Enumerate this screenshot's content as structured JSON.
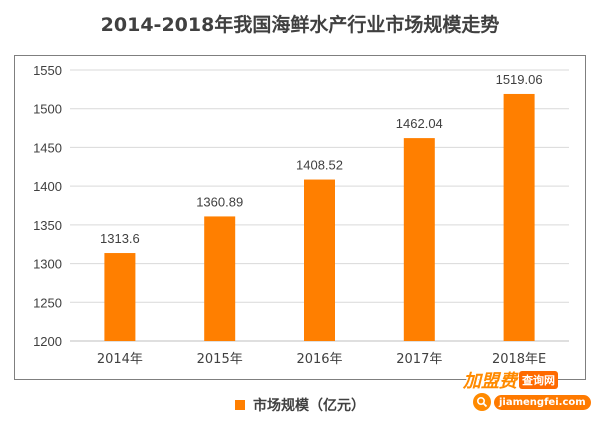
{
  "chart_data": {
    "type": "bar",
    "title": "2014-2018年我国海鲜水产行业市场规模走势",
    "categories": [
      "2014年",
      "2015年",
      "2016年",
      "2017年",
      "2018年E"
    ],
    "series": [
      {
        "name": "市场规模（亿元）",
        "values": [
          1313.6,
          1360.89,
          1408.52,
          1462.04,
          1519.06
        ],
        "color": "#ff7f00"
      }
    ],
    "data_labels": [
      "1313.6",
      "1360.89",
      "1408.52",
      "1462.04",
      "1519.06"
    ],
    "y_ticks": [
      1200,
      1250,
      1300,
      1350,
      1400,
      1450,
      1500,
      1550
    ],
    "ylim": [
      1200,
      1550
    ],
    "grid": true,
    "legend": "bottom-center"
  },
  "legend": {
    "label": "市场规模（亿元）"
  },
  "watermark": {
    "brand": "加盟费",
    "badge": "查询网",
    "url": "jiamengfei.com"
  }
}
